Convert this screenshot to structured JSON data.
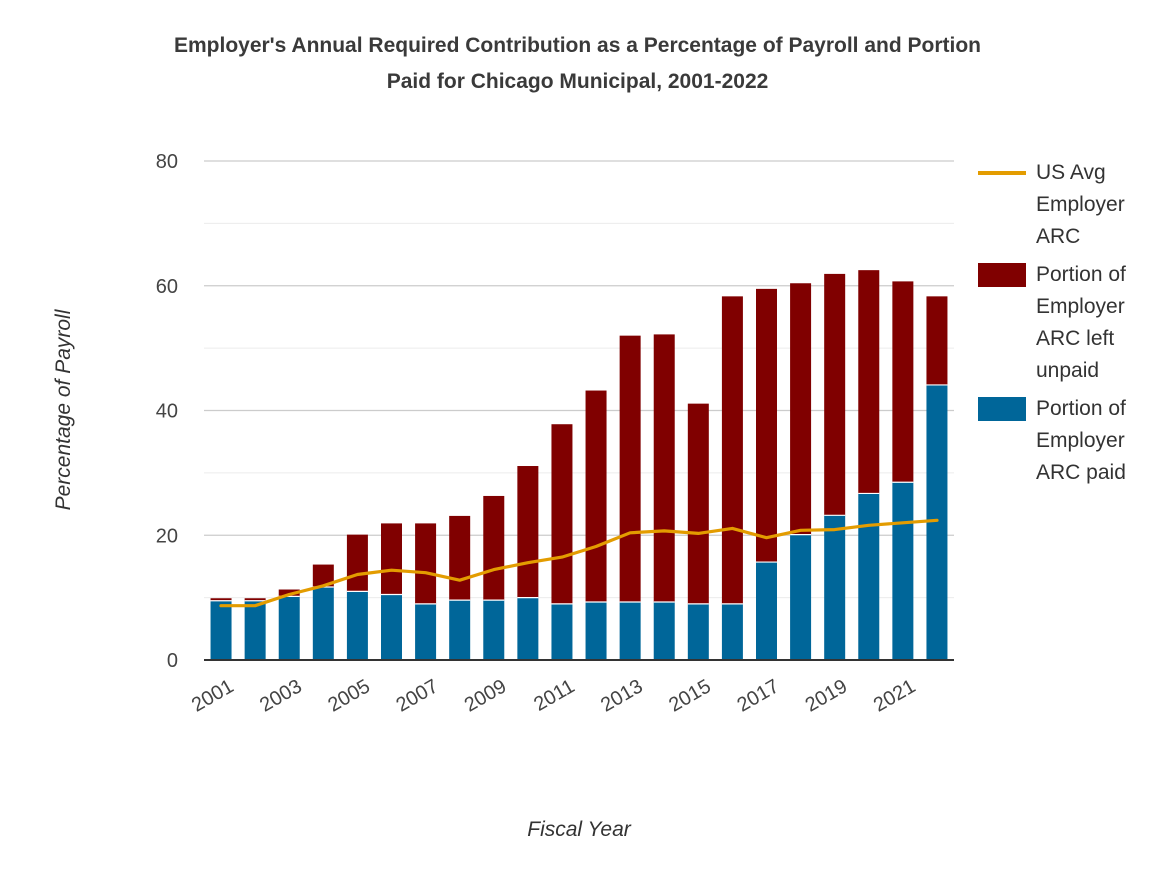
{
  "chart_data": {
    "type": "bar",
    "stacked": true,
    "title_lines": [
      "Employer's Annual Required Contribution as a Percentage of Payroll and Portion",
      "Paid for Chicago Municipal, 2001-2022"
    ],
    "xlabel": "Fiscal Year",
    "ylabel": "Percentage of Payroll",
    "ylim": [
      0,
      80
    ],
    "y_ticks": [
      0,
      20,
      40,
      60,
      80
    ],
    "grid": true,
    "legend_position": "right",
    "categories": [
      "2001",
      "2002",
      "2003",
      "2004",
      "2005",
      "2006",
      "2007",
      "2008",
      "2009",
      "2010",
      "2011",
      "2012",
      "2013",
      "2014",
      "2015",
      "2016",
      "2017",
      "2018",
      "2019",
      "2020",
      "2021",
      "2022"
    ],
    "x_tick_labels": [
      "2001",
      "2003",
      "2005",
      "2007",
      "2009",
      "2011",
      "2013",
      "2015",
      "2017",
      "2019",
      "2021"
    ],
    "series": [
      {
        "name": "Portion of Employer ARC paid",
        "kind": "bar",
        "color": "#006699",
        "values": [
          9.5,
          9.5,
          10.2,
          11.7,
          11.0,
          10.5,
          9.0,
          9.6,
          9.6,
          10.0,
          9.0,
          9.3,
          9.3,
          9.3,
          9.0,
          9.0,
          15.7,
          20.1,
          23.2,
          26.7,
          28.5,
          44.1
        ]
      },
      {
        "name": "Portion of Employer ARC left unpaid",
        "kind": "bar",
        "color": "#800000",
        "values": [
          0.4,
          0.4,
          1.1,
          3.6,
          9.1,
          11.4,
          12.9,
          13.5,
          16.7,
          21.1,
          28.8,
          33.9,
          42.7,
          42.9,
          32.1,
          49.3,
          43.8,
          40.3,
          38.7,
          35.8,
          32.2,
          14.2
        ]
      },
      {
        "name": "US Avg Employer ARC",
        "kind": "line",
        "color": "#E39C00",
        "values": [
          8.7,
          8.7,
          10.5,
          11.9,
          13.7,
          14.4,
          14.0,
          12.8,
          14.5,
          15.6,
          16.5,
          18.2,
          20.4,
          20.7,
          20.3,
          21.1,
          19.6,
          20.8,
          20.9,
          21.6,
          22.0,
          22.4
        ]
      }
    ]
  },
  "legend": [
    {
      "label": "US Avg Employer ARC",
      "kind": "line",
      "color": "#E39C00"
    },
    {
      "label": "Portion of Employer ARC left unpaid",
      "kind": "box",
      "color": "#800000"
    },
    {
      "label": "Portion of Employer ARC paid",
      "kind": "box",
      "color": "#006699"
    }
  ]
}
